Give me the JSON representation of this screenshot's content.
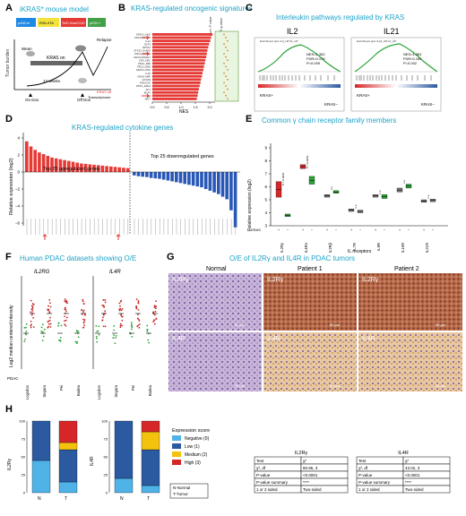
{
  "panels": {
    "A": {
      "letter": "A",
      "title": "iKRAS* mouse model",
      "alleles": [
        "p48Cre",
        "R26-rtTA",
        "TetO-KrasG12D",
        "p53L/+"
      ],
      "ylabel": "Tumor burden",
      "kras_on": "KRAS on",
      "relapse": "Relapse",
      "weeks": "12 weeks",
      "wean": "Wean",
      "on_dox": "On\nDox",
      "off_dox": "Off\nDox",
      "transcriptome": "Transcriptome",
      "kras_off": "KRAS off",
      "colors": {
        "p48Cre": "#1e88e5",
        "R26-rtTA": "#f4e23c",
        "TetO": "#e53935",
        "p53": "#43a047"
      }
    },
    "B": {
      "letter": "B",
      "title": "KRAS-regulated oncogenic signatures",
      "col1": "Nom. P value",
      "col2": "FDR q-value",
      "xlabel": "NES",
      "ticks": [
        "0.0",
        "0.5",
        "1.0",
        "1.5",
        "2.0"
      ],
      "sig_labels": [
        "KRAS.LUNG",
        "KRAS.PROST",
        "IL21",
        "E2F1",
        "RPS14",
        "STK33_NOMO",
        "PRC2_SUZ12",
        "KRAS.KIDNEY",
        "CRX_NRL",
        "PRC1_BMI",
        "PRC2_EED",
        "KRAS.LUNG",
        "IL15",
        "KRAS.AMP",
        "HOXA9",
        "KRAS.DF",
        "PRC2_EZH2",
        "AKT",
        "BCAT",
        "IL2",
        "WNT"
      ],
      "nes_values": [
        2.1,
        2.05,
        2.02,
        1.98,
        1.95,
        1.92,
        1.9,
        1.88,
        1.85,
        1.83,
        1.8,
        1.78,
        1.75,
        1.73,
        1.7,
        1.68,
        1.65,
        1.62,
        1.6,
        1.58,
        1.55
      ],
      "bar_color": "#e53935"
    },
    "C": {
      "letter": "C",
      "title": "Interleukin pathways regulated by KRAS",
      "plots": [
        {
          "name": "IL2",
          "header": "Enrichment plot: IL2_UP.V1_UP",
          "nes": "NES=1.362",
          "fdr": "FDR=0.176",
          "p": "P=0.009",
          "pos": "KRAS+",
          "neg": "KRAS−"
        },
        {
          "name": "IL21",
          "header": "Enrichment plot: IL21_UP.V1_UP",
          "nes": "NES=1.381",
          "fdr": "FDR=0.181",
          "p": "P=0.002",
          "pos": "KRAS+",
          "neg": "KRAS−"
        }
      ]
    },
    "D": {
      "letter": "D",
      "title": "KRAS-regulated cytokine genes",
      "ylabel": "Relative expression (log2)",
      "up_label": "Top 25 upregulated genes",
      "down_label": "Top 25 downregulated genes",
      "yticks": [
        "4",
        "2",
        "0",
        "−2",
        "−4",
        "−6"
      ],
      "up_values": [
        3.6,
        3.0,
        2.6,
        2.3,
        2.1,
        1.9,
        1.7,
        1.6,
        1.5,
        1.4,
        1.3,
        1.2,
        1.1,
        1.0,
        0.95,
        0.9,
        0.85,
        0.8,
        0.75,
        0.7,
        0.65,
        0.6,
        0.55,
        0.5,
        0.45
      ],
      "down_values": [
        -0.4,
        -0.5,
        -0.55,
        -0.6,
        -0.7,
        -0.75,
        -0.8,
        -0.9,
        -1.0,
        -1.1,
        -1.2,
        -1.3,
        -1.4,
        -1.5,
        -1.6,
        -1.7,
        -1.8,
        -2.0,
        -2.2,
        -2.4,
        -2.6,
        -2.9,
        -3.2,
        -4.5,
        -6.5
      ],
      "up_color": "#e53935",
      "down_color": "#2857b8"
    },
    "E": {
      "letter": "E",
      "title": "Common γ chain receptor family members",
      "ylabel": "Relative expression (log2)",
      "xlabel": "IL receptors",
      "kras_label": "KRAS",
      "receptors": [
        "IL2Rγ",
        "IL4Rα",
        "IL2Rβ",
        "IL7R",
        "IL9R",
        "IL15R",
        "IL21R"
      ],
      "pvals": [
        "P < 0.0001",
        "P < 0.0001",
        "n.s.",
        "n.s.",
        "n.s.",
        "n.s.",
        "n.s."
      ],
      "yticks": [
        "9",
        "8",
        "7",
        "6",
        "5",
        "4",
        "3"
      ]
    },
    "F": {
      "letter": "F",
      "title": "Human PDAC datasets showing O/E",
      "left_gene": "IL2RG",
      "right_gene": "IL4R",
      "ylabel": "Log2 median centered intensity",
      "datasets": [
        "Logsdon",
        "Segara",
        "Pei",
        "Badea"
      ],
      "pdac": "PDAC"
    },
    "G": {
      "letter": "G",
      "title": "O/E of IL2Rγ and IL4R in PDAC tumors",
      "columns": [
        "Normal",
        "Patient 1",
        "Patient 2"
      ],
      "rows": [
        "IL2Rγ",
        "IL4R"
      ],
      "scale": "50 μm"
    },
    "H": {
      "letter": "H",
      "left_axis": "IL2Rγ",
      "right_axis": "IL4R",
      "n_label": "N",
      "t_label": "T",
      "legend_title": "Expression score",
      "legend": [
        {
          "label": "Negative (0)",
          "color": "#4fb3e8"
        },
        {
          "label": "Low (1)",
          "color": "#2c5aa0"
        },
        {
          "label": "Medium (2)",
          "color": "#f4c20d"
        },
        {
          "label": "High (3)",
          "color": "#d62728"
        }
      ],
      "note": "N-Normal\nT-Tumor",
      "tables": [
        {
          "title": "IL2Rγ",
          "rows": [
            [
              "Test",
              "χ²"
            ],
            [
              "χ², df",
              "80.95, 3"
            ],
            [
              "P-value",
              "<0.0001"
            ],
            [
              "P-value summary",
              "****"
            ],
            [
              "1 or 2 sided",
              "Two-sided"
            ]
          ]
        },
        {
          "title": "IL4R",
          "rows": [
            [
              "Test",
              "χ²"
            ],
            [
              "χ², df",
              "43.02, 3"
            ],
            [
              "P-value",
              "<0.0001"
            ],
            [
              "P-value summary",
              "****"
            ],
            [
              "1 or 2 sided",
              "Two-sided"
            ]
          ]
        }
      ],
      "yticks": [
        "100",
        "75",
        "50",
        "25",
        "0"
      ]
    }
  }
}
